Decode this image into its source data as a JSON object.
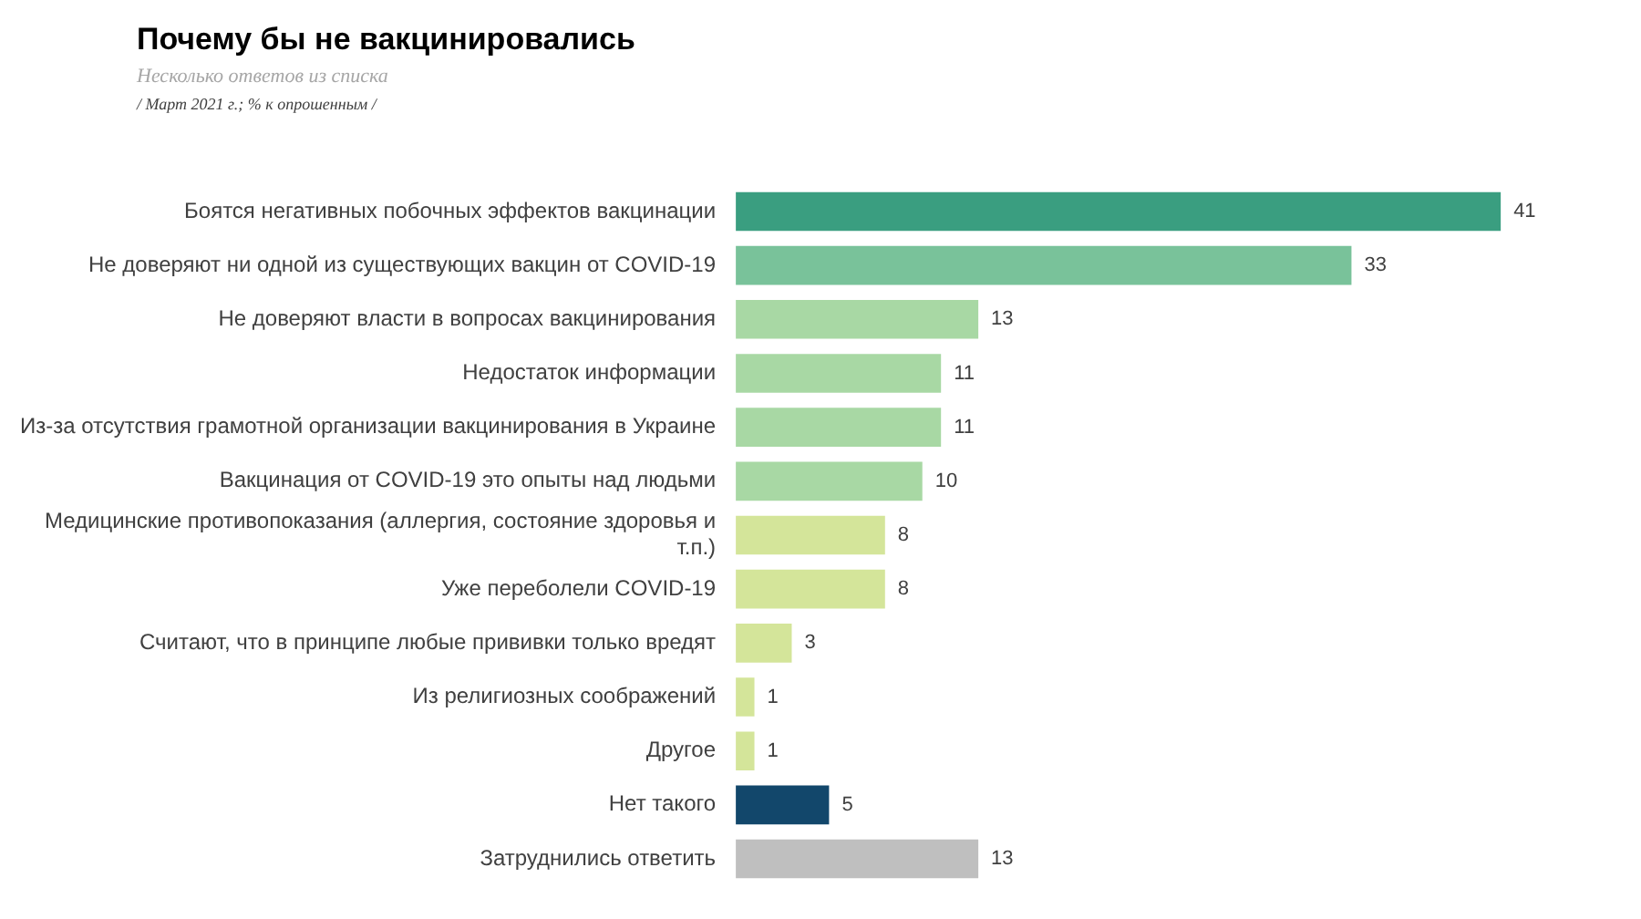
{
  "chart_data": {
    "type": "bar",
    "orientation": "horizontal",
    "title": "Почему бы не вакцинировались",
    "subtitle": "Несколько ответов из списка",
    "annotations": [
      "/ Март 2021 г.; % к опрошенным /"
    ],
    "categories": [
      "Боятся негативных побочных эффектов вакцинации",
      "Не доверяют ни одной из существующих вакцин от COVID-19",
      "Не доверяют власти в вопросах вакцинирования",
      "Недостаток информации",
      "Из-за отсутствия грамотной организации вакцинирования в Украине",
      "Вакцинация от COVID-19 это опыты над людьми",
      "Медицинские противопоказания (аллергия, состояние здоровья и т.п.)",
      "Уже переболели COVID-19",
      "Считают, что в принципе любые прививки только вредят",
      "Из религиозных соображений",
      "Другое",
      "Нет такого",
      "Затруднились ответить"
    ],
    "values": [
      41,
      33,
      13,
      11,
      11,
      10,
      8,
      8,
      3,
      1,
      1,
      5,
      13
    ],
    "colors": [
      "#3a9e80",
      "#79c29a",
      "#a8d8a4",
      "#a8d8a4",
      "#a8d8a4",
      "#a8d8a4",
      "#d4e59a",
      "#d4e59a",
      "#d4e59a",
      "#d4e59a",
      "#d4e59a",
      "#12476b",
      "#bfbfbf"
    ],
    "data_labels": true
  }
}
